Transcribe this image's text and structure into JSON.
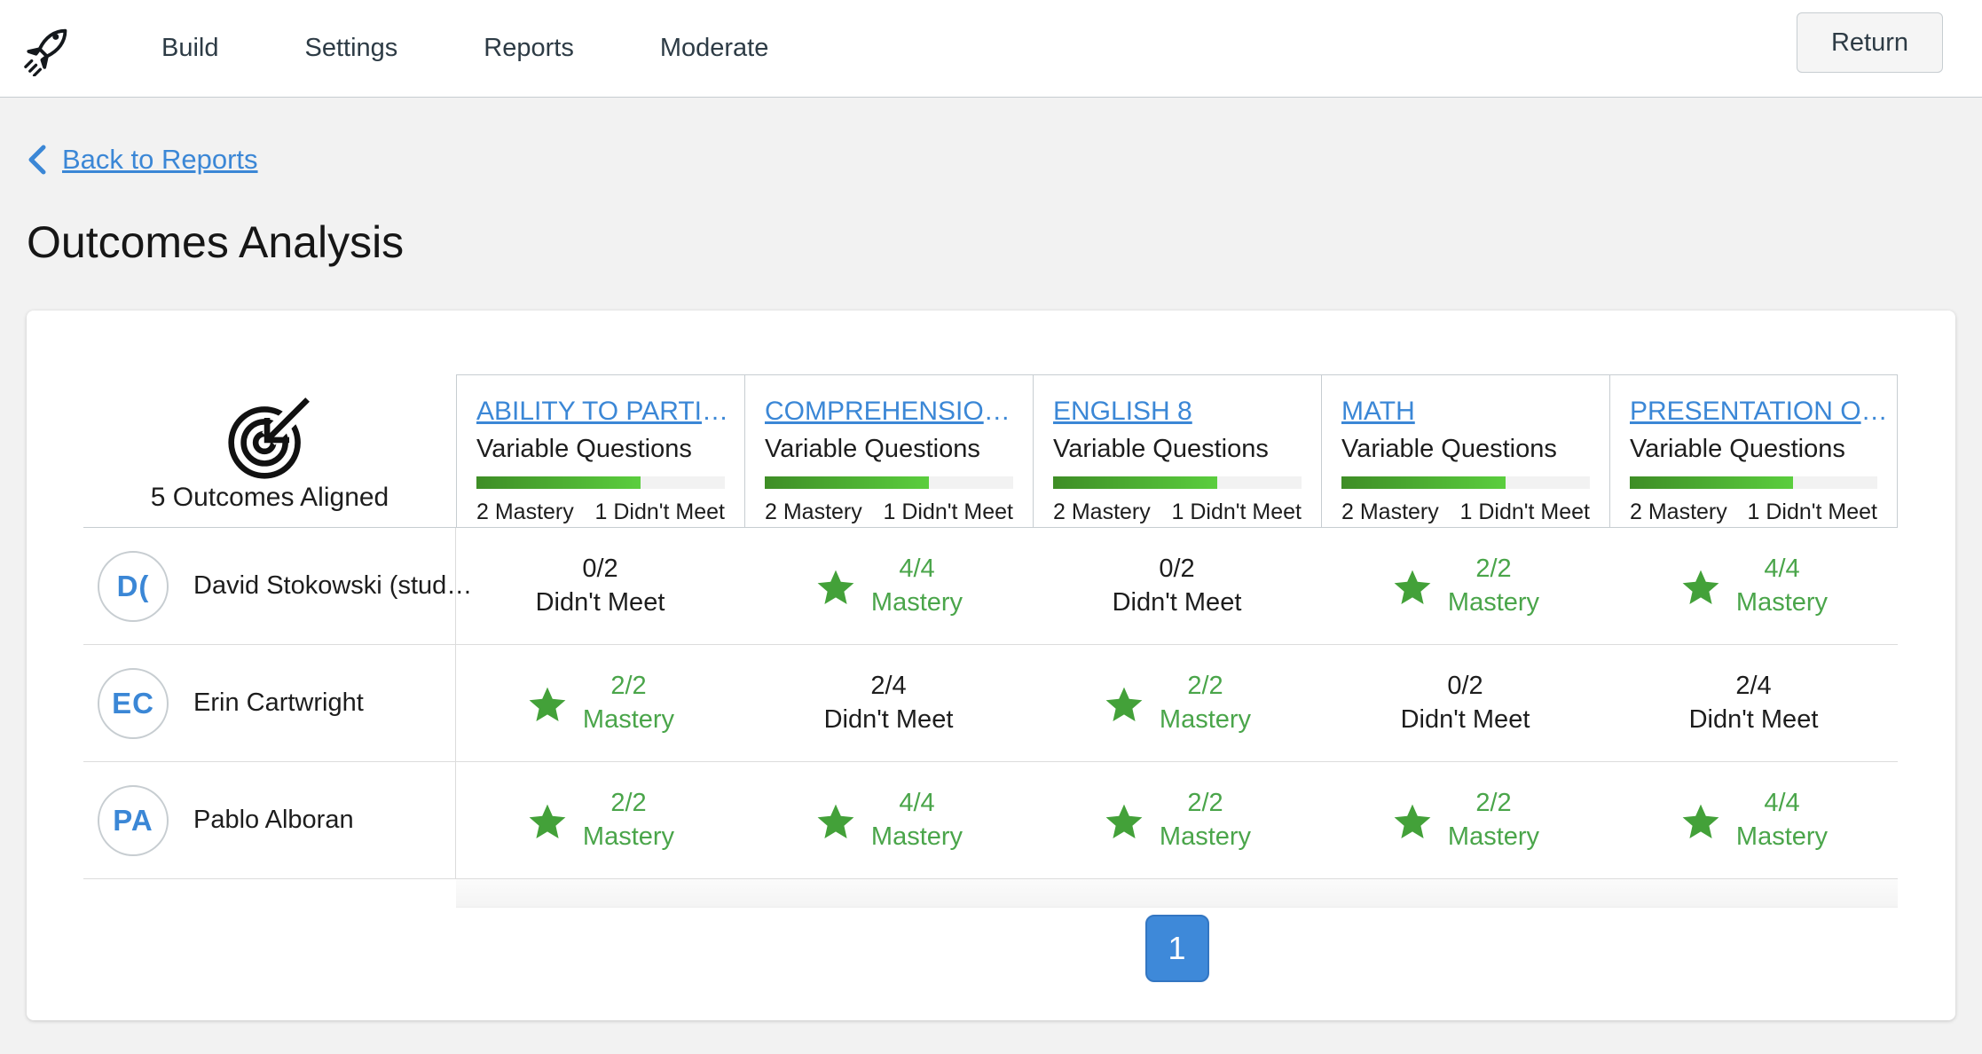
{
  "nav": {
    "items": [
      "Build",
      "Settings",
      "Reports",
      "Moderate"
    ],
    "return_label": "Return"
  },
  "back_link_label": "Back to Reports",
  "page_title": "Outcomes Analysis",
  "table": {
    "aligned_label": "5 Outcomes Aligned",
    "outcomes": [
      {
        "title": "ABILITY TO PARTI",
        "ellipsis": "…",
        "subtitle": "Variable Questions",
        "mastery_count": "2 Mastery",
        "didnt_meet_count": "1 Didn't Meet",
        "fill_pct": 66
      },
      {
        "title": "COMPREHENSIO",
        "ellipsis": "…",
        "subtitle": "Variable Questions",
        "mastery_count": "2 Mastery",
        "didnt_meet_count": "1 Didn't Meet",
        "fill_pct": 66
      },
      {
        "title": "ENGLISH 8",
        "ellipsis": "",
        "subtitle": "Variable Questions",
        "mastery_count": "2 Mastery",
        "didnt_meet_count": "1 Didn't Meet",
        "fill_pct": 66
      },
      {
        "title": "MATH",
        "ellipsis": "",
        "subtitle": "Variable Questions",
        "mastery_count": "2 Mastery",
        "didnt_meet_count": "1 Didn't Meet",
        "fill_pct": 66
      },
      {
        "title": "PRESENTATION O",
        "ellipsis": "…",
        "subtitle": "Variable Questions",
        "mastery_count": "2 Mastery",
        "didnt_meet_count": "1 Didn't Meet",
        "fill_pct": 66
      }
    ],
    "students": [
      {
        "initials": "D(",
        "name": "David Stokowski (stud…",
        "results": [
          {
            "score": "0/2",
            "label": "Didn't Meet",
            "mastery": false
          },
          {
            "score": "4/4",
            "label": "Mastery",
            "mastery": true
          },
          {
            "score": "0/2",
            "label": "Didn't Meet",
            "mastery": false
          },
          {
            "score": "2/2",
            "label": "Mastery",
            "mastery": true
          },
          {
            "score": "4/4",
            "label": "Mastery",
            "mastery": true
          }
        ]
      },
      {
        "initials": "EC",
        "name": "Erin Cartwright",
        "results": [
          {
            "score": "2/2",
            "label": "Mastery",
            "mastery": true
          },
          {
            "score": "2/4",
            "label": "Didn't Meet",
            "mastery": false
          },
          {
            "score": "2/2",
            "label": "Mastery",
            "mastery": true
          },
          {
            "score": "0/2",
            "label": "Didn't Meet",
            "mastery": false
          },
          {
            "score": "2/4",
            "label": "Didn't Meet",
            "mastery": false
          }
        ]
      },
      {
        "initials": "PA",
        "name": "Pablo Alboran",
        "results": [
          {
            "score": "2/2",
            "label": "Mastery",
            "mastery": true
          },
          {
            "score": "4/4",
            "label": "Mastery",
            "mastery": true
          },
          {
            "score": "2/2",
            "label": "Mastery",
            "mastery": true
          },
          {
            "score": "2/2",
            "label": "Mastery",
            "mastery": true
          },
          {
            "score": "4/4",
            "label": "Mastery",
            "mastery": true
          }
        ]
      }
    ]
  },
  "pagination": {
    "page": "1"
  },
  "colors": {
    "link_blue": "#3b87d6",
    "nav_text": "#2d3b45",
    "mastery_star_green": "#43a139",
    "mastery_text_green": "#4aa54a",
    "bar_gradient_start": "#3e8d26",
    "bar_gradient_end": "#5bce3e",
    "pagination_blue": "#3e89d9"
  }
}
